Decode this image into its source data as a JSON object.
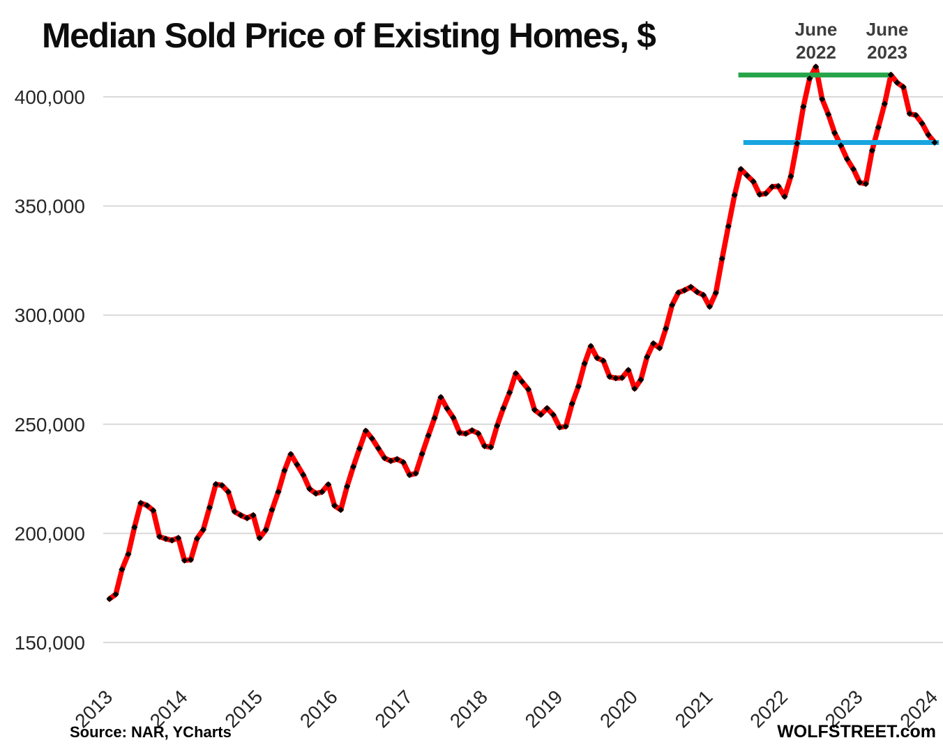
{
  "title": "Median Sold Price of Existing Homes, $",
  "source_note": "Source: NAR, YCharts",
  "branding": "WOLFSTREET.com",
  "annotations": {
    "peak1": {
      "line1": "June",
      "line2": "2022"
    },
    "peak2": {
      "line1": "June",
      "line2": "2023"
    }
  },
  "colors": {
    "price_line": "#fe0000",
    "marker": "#000000",
    "green_reference": "#27a449",
    "blue_reference": "#18a5e0",
    "gridline": "#d9d9d9",
    "axis_text": "#262626",
    "title_text": "#0d0d0d",
    "annotation_text": "#3d3d3d"
  },
  "chart_data": {
    "type": "line",
    "title": "Median Sold Price of Existing Homes, $",
    "frequency": "monthly",
    "x_start": "2013-01",
    "x_end": "2024-01",
    "x_year_ticks": [
      2013,
      2014,
      2015,
      2016,
      2017,
      2018,
      2019,
      2020,
      2021,
      2022,
      2023,
      2024
    ],
    "y_ticks": [
      150000,
      200000,
      250000,
      300000,
      350000,
      400000
    ],
    "ylim": [
      143000,
      444000
    ],
    "grid": true,
    "legend": "none",
    "series": [
      {
        "name": "Median sold price of existing homes, USD",
        "marker": "diamond",
        "values": [
          170000,
          172100,
          183500,
          190500,
          202800,
          213900,
          212800,
          210500,
          198500,
          197500,
          196800,
          197900,
          187600,
          187900,
          197600,
          201700,
          211800,
          222500,
          222000,
          219000,
          210000,
          208300,
          207000,
          208300,
          197900,
          201600,
          210800,
          219000,
          228800,
          236300,
          231500,
          226800,
          220400,
          218300,
          219000,
          222400,
          212700,
          210800,
          221500,
          230500,
          238900,
          247000,
          243500,
          239000,
          234500,
          233200,
          234000,
          232600,
          226800,
          227500,
          236400,
          244800,
          252800,
          262400,
          257200,
          253000,
          246100,
          245700,
          247200,
          245800,
          240000,
          239500,
          249300,
          257300,
          264500,
          273300,
          269500,
          266000,
          256600,
          254400,
          257300,
          254300,
          248600,
          249000,
          259400,
          267300,
          277800,
          285800,
          280400,
          279100,
          271800,
          271100,
          271300,
          274800,
          266300,
          270400,
          280800,
          287000,
          284900,
          293800,
          304600,
          310300,
          311400,
          312900,
          310600,
          309200,
          303900,
          310200,
          325900,
          340700,
          355000,
          366900,
          364000,
          361200,
          355300,
          355700,
          358800,
          359100,
          354300,
          363600,
          378700,
          395500,
          408400,
          413800,
          399000,
          392000,
          383500,
          377700,
          371500,
          366900,
          360800,
          360200,
          375400,
          386000,
          396800,
          410100,
          406500,
          404500,
          392300,
          391600,
          387800,
          382600,
          379100
        ]
      }
    ],
    "reference_lines": [
      {
        "name": "peak-level-line",
        "value": 410000,
        "color_key": "green_reference",
        "x_from_idx": 100.6,
        "x_to_idx": 124.7,
        "note": "level of June 2022 / June 2023 peaks"
      },
      {
        "name": "current-level-line",
        "value": 379100,
        "color_key": "blue_reference",
        "x_from_idx": 101.4,
        "x_to_idx": 132.7,
        "note": "latest price level"
      }
    ]
  }
}
